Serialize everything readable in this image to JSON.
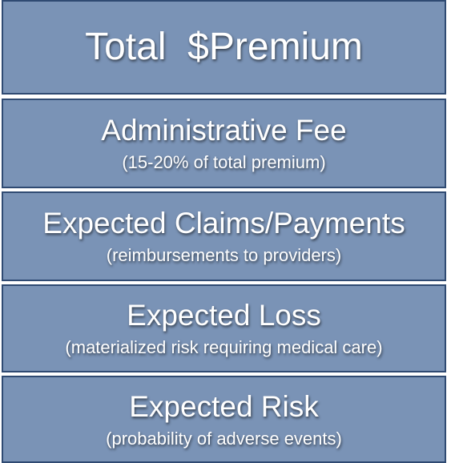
{
  "boxes": [
    {
      "title": "Total  $Premium"
    },
    {
      "title": "Administrative Fee",
      "subtitle": "(15-20% of total premium)"
    },
    {
      "title": "Expected Claims/Payments",
      "subtitle": "(reimbursements to providers)"
    },
    {
      "title": "Expected Loss",
      "subtitle": "(materialized risk requiring medical care)"
    },
    {
      "title": "Expected Risk",
      "subtitle": "(probability of adverse events)"
    }
  ]
}
